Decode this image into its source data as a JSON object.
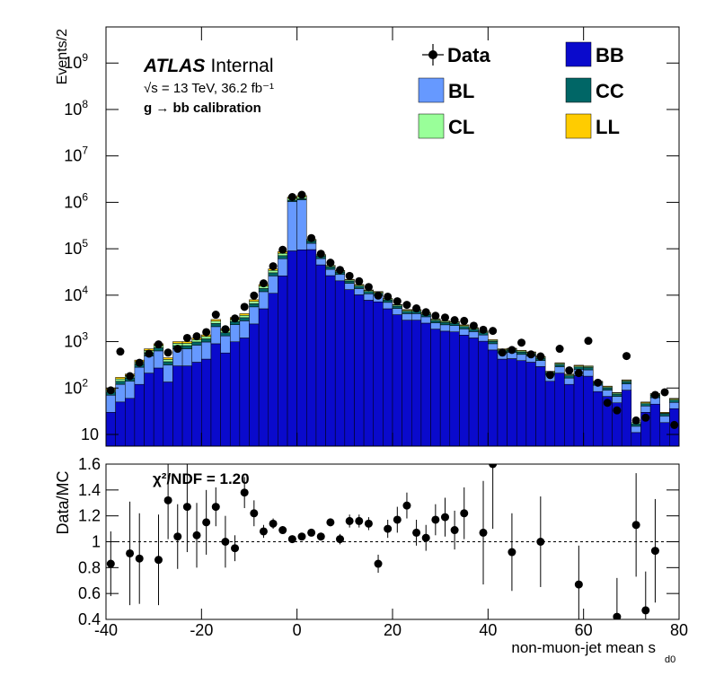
{
  "chart_data": [
    {
      "type": "stacked_histogram",
      "atlas_label": "ATLAS",
      "atlas_status": "Internal",
      "lumi_label": "√s = 13 TeV, 36.2 fb⁻¹",
      "process_label": "g → bb calibration",
      "ylabel": "Events/2",
      "log_scale": true,
      "bins": [
        -40,
        -38,
        -36,
        -34,
        -32,
        -30,
        -28,
        -26,
        -24,
        -22,
        -20,
        -18,
        -16,
        -14,
        -12,
        -10,
        -8,
        -6,
        -4,
        -2,
        0,
        2,
        4,
        6,
        8,
        10,
        12,
        14,
        16,
        18,
        20,
        22,
        24,
        26,
        28,
        30,
        32,
        34,
        36,
        38,
        40,
        42,
        44,
        46,
        48,
        50,
        52,
        54,
        56,
        58,
        60,
        62,
        64,
        66,
        68,
        70,
        72,
        74,
        76,
        78,
        80
      ],
      "xlim": [
        -40,
        80
      ],
      "ylim": [
        5.6,
        6000000000
      ],
      "yticks": [
        10,
        {
          "value": 100,
          "label": "10",
          "exponent": "2"
        },
        {
          "value": 1000,
          "label": "10",
          "exponent": "3"
        },
        {
          "value": 10000,
          "label": "10",
          "exponent": "4"
        },
        {
          "value": 100000,
          "label": "10",
          "exponent": "5"
        },
        {
          "value": 1000000,
          "label": "10",
          "exponent": "6"
        },
        {
          "value": 10000000,
          "label": "10",
          "exponent": "7"
        },
        {
          "value": 100000000,
          "label": "10",
          "exponent": "8"
        },
        {
          "value": 1000000000,
          "label": "10",
          "exponent": "9"
        }
      ],
      "data_points": {
        "name": "Data",
        "color": "#000000",
        "values": [
          89,
          610,
          180,
          350,
          550,
          870,
          580,
          700,
          1200,
          1300,
          1600,
          3800,
          1850,
          3150,
          5600,
          9800,
          18000,
          42000,
          95000,
          1300000,
          1450000,
          170000,
          78000,
          50000,
          35000,
          26000,
          20000,
          15000,
          9800,
          9300,
          7400,
          6200,
          5200,
          4300,
          3600,
          3300,
          2900,
          2800,
          2200,
          1800,
          1700,
          580,
          660,
          950,
          530,
          480,
          190,
          700,
          240,
          210,
          1040,
          130,
          48,
          33,
          490,
          20,
          23,
          71,
          81,
          16
        ]
      },
      "series": [
        {
          "name": "BB",
          "color": "#0a0acc",
          "values": [
            30,
            50,
            60,
            120,
            210,
            270,
            135,
            300,
            300,
            360,
            420,
            900,
            570,
            990,
            1200,
            2400,
            5100,
            11000,
            26000,
            90000,
            95000,
            96000,
            45000,
            26400,
            20400,
            13200,
            10200,
            7800,
            7200,
            5100,
            3800,
            2900,
            2900,
            2500,
            1860,
            1680,
            1620,
            1380,
            1200,
            1020,
            660,
            420,
            430,
            390,
            360,
            290,
            140,
            210,
            120,
            185,
            180,
            84,
            66,
            48,
            90,
            11,
            30,
            45,
            18,
            36
          ]
        },
        {
          "name": "BL",
          "color": "#6699ff",
          "values": [
            40,
            70,
            80,
            160,
            280,
            360,
            180,
            400,
            400,
            480,
            560,
            1200,
            760,
            1320,
            1600,
            3200,
            6800,
            15000,
            35000,
            950000,
            1030000,
            35000,
            16500,
            9700,
            7500,
            4800,
            3700,
            2900,
            2600,
            1900,
            1400,
            1100,
            1100,
            920,
            680,
            620,
            590,
            500,
            440,
            370,
            240,
            150,
            160,
            140,
            130,
            100,
            50,
            77,
            44,
            68,
            66,
            31,
            24,
            18,
            33,
            4,
            11,
            17,
            7,
            13
          ]
        },
        {
          "name": "CC",
          "color": "#006666",
          "values": [
            12,
            20,
            24,
            48,
            84,
            108,
            54,
            120,
            120,
            144,
            168,
            360,
            228,
            396,
            480,
            960,
            2040,
            4400,
            10000,
            70000,
            75000,
            16000,
            7500,
            4400,
            3400,
            2200,
            1700,
            1300,
            1200,
            850,
            630,
            490,
            490,
            420,
            310,
            280,
            270,
            230,
            200,
            170,
            110,
            70,
            72,
            65,
            60,
            48,
            23,
            35,
            20,
            31,
            30,
            14,
            11,
            8,
            15,
            2,
            5,
            8,
            3,
            6
          ]
        },
        {
          "name": "CL",
          "color": "#99ff99",
          "values": [
            10,
            17,
            20,
            40,
            70,
            90,
            45,
            100,
            100,
            120,
            140,
            300,
            190,
            330,
            400,
            800,
            1700,
            3700,
            8700,
            110000,
            120000,
            8000,
            3750,
            2200,
            1700,
            1100,
            850,
            650,
            600,
            420,
            310,
            250,
            250,
            210,
            155,
            140,
            135,
            115,
            100,
            85,
            55,
            35,
            36,
            33,
            30,
            24,
            11,
            17,
            10,
            15,
            15,
            7,
            5,
            4,
            7,
            1,
            2,
            4,
            1,
            3
          ]
        },
        {
          "name": "LL",
          "color": "#ffcc00",
          "values": [
            8,
            13,
            16,
            32,
            56,
            72,
            36,
            80,
            80,
            96,
            112,
            240,
            152,
            264,
            320,
            640,
            1360,
            2900,
            7300,
            80000,
            80000,
            5000,
            2250,
            1300,
            1000,
            700,
            550,
            350,
            400,
            230,
            160,
            160,
            160,
            150,
            95,
            80,
            85,
            75,
            60,
            55,
            35,
            25,
            22,
            22,
            20,
            18,
            6,
            11,
            6,
            11,
            9,
            4,
            4,
            2,
            5,
            0,
            2,
            2,
            1,
            2
          ]
        }
      ]
    },
    {
      "type": "ratio",
      "ylabel": "Data/MC",
      "xlabel": "non-muon-jet mean s",
      "xlabel_sub": "d0",
      "chi2_label": "χ²/NDF = 1.20",
      "xlim": [
        -40,
        80
      ],
      "xticks": [
        -40,
        -20,
        0,
        20,
        40,
        60,
        80
      ],
      "ylim": [
        0.4,
        1.6
      ],
      "yticks": [
        0.4,
        0.6,
        0.8,
        1,
        1.2,
        1.4,
        1.6
      ],
      "reference_line": 1,
      "values": [
        0.83,
        null,
        0.91,
        0.87,
        null,
        0.86,
        1.32,
        1.04,
        1.27,
        1.05,
        1.15,
        1.27,
        1.0,
        0.95,
        1.38,
        1.22,
        1.08,
        1.14,
        1.09,
        1.02,
        1.04,
        1.07,
        1.04,
        1.15,
        1.02,
        1.16,
        1.16,
        1.14,
        0.83,
        1.1,
        1.17,
        1.28,
        1.07,
        1.03,
        1.17,
        1.19,
        1.09,
        1.22,
        null,
        1.07,
        1.6,
        null,
        0.92,
        null,
        null,
        1.0,
        null,
        null,
        null,
        0.67,
        null,
        null,
        null,
        0.42,
        null,
        1.13,
        0.47,
        0.93,
        null,
        null
      ],
      "errors": [
        0.25,
        null,
        0.4,
        0.35,
        null,
        0.35,
        0.3,
        0.25,
        0.35,
        0.25,
        0.25,
        0.15,
        0.2,
        0.1,
        0.12,
        0.1,
        0.05,
        0.04,
        0.03,
        0.01,
        0.01,
        0.02,
        0.03,
        0.03,
        0.04,
        0.05,
        0.05,
        0.05,
        0.07,
        0.07,
        0.1,
        0.1,
        0.1,
        0.1,
        0.12,
        0.15,
        0.15,
        0.2,
        null,
        0.4,
        0.5,
        null,
        0.3,
        null,
        null,
        0.35,
        null,
        null,
        null,
        0.3,
        null,
        null,
        null,
        0.3,
        null,
        0.4,
        0.3,
        0.4,
        null,
        null
      ]
    }
  ]
}
